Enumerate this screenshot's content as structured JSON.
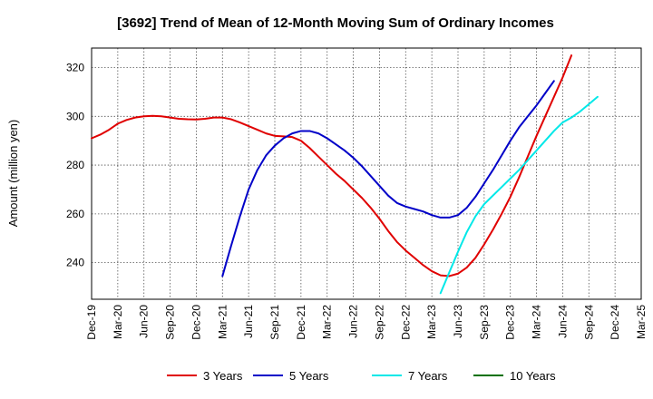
{
  "chart_data": {
    "type": "line",
    "title": "[3692]  Trend of Mean of 12-Month Moving Sum of Ordinary Incomes",
    "xlabel": "",
    "ylabel": "Amount (million yen)",
    "ylim": [
      225,
      328
    ],
    "yticks": [
      240,
      260,
      280,
      300,
      320
    ],
    "grid": true,
    "legend_position": "bottom",
    "x_labels": [
      "Dec-19",
      "Mar-20",
      "Jun-20",
      "Sep-20",
      "Dec-20",
      "Mar-21",
      "Jun-21",
      "Sep-21",
      "Dec-21",
      "Mar-22",
      "Jun-22",
      "Sep-22",
      "Dec-22",
      "Mar-23",
      "Jun-23",
      "Sep-23",
      "Dec-23",
      "Mar-24",
      "Jun-24",
      "Sep-24",
      "Dec-24",
      "Mar-25"
    ],
    "series": [
      {
        "name": "3 Years",
        "color": "#e00000",
        "start_index": 0,
        "values": [
          291,
          292.5,
          294.5,
          297,
          298.5,
          299.5,
          300,
          300.2,
          300,
          299.5,
          299,
          298.8,
          298.7,
          299,
          299.5,
          299.5,
          298.8,
          297.5,
          296,
          294.5,
          293,
          292,
          291.8,
          291.5,
          290,
          287,
          283.5,
          280,
          276.5,
          273.5,
          270,
          266.5,
          262.5,
          258,
          253,
          248.5,
          245,
          242,
          239,
          236.5,
          234.8,
          234.5,
          235.5,
          238,
          242,
          247.5,
          253.5,
          260,
          267,
          275,
          283.5,
          292,
          300,
          308,
          316,
          325
        ]
      },
      {
        "name": "5 Years",
        "color": "#0000c8",
        "start_index": 15,
        "values": [
          234.5,
          247,
          259,
          270,
          278,
          284,
          288,
          291,
          293,
          294,
          294,
          293,
          291,
          288.5,
          286,
          283,
          279.5,
          275.5,
          271.5,
          267.5,
          264.5,
          263,
          262,
          261,
          259.5,
          258.5,
          258.5,
          259.5,
          262.5,
          267,
          272.5,
          278,
          284,
          290,
          295.5,
          300,
          304.5,
          309.5,
          314.5
        ]
      },
      {
        "name": "7 Years",
        "color": "#00e8e8",
        "start_index": 40,
        "values": [
          227.5,
          236,
          244.5,
          252.5,
          259,
          264,
          267.5,
          271,
          274.5,
          278,
          282,
          286,
          290,
          294,
          297.5,
          299.5,
          302,
          305,
          308
        ]
      },
      {
        "name": "10 Years",
        "color": "#007000",
        "start_index": 0,
        "values": []
      }
    ]
  }
}
